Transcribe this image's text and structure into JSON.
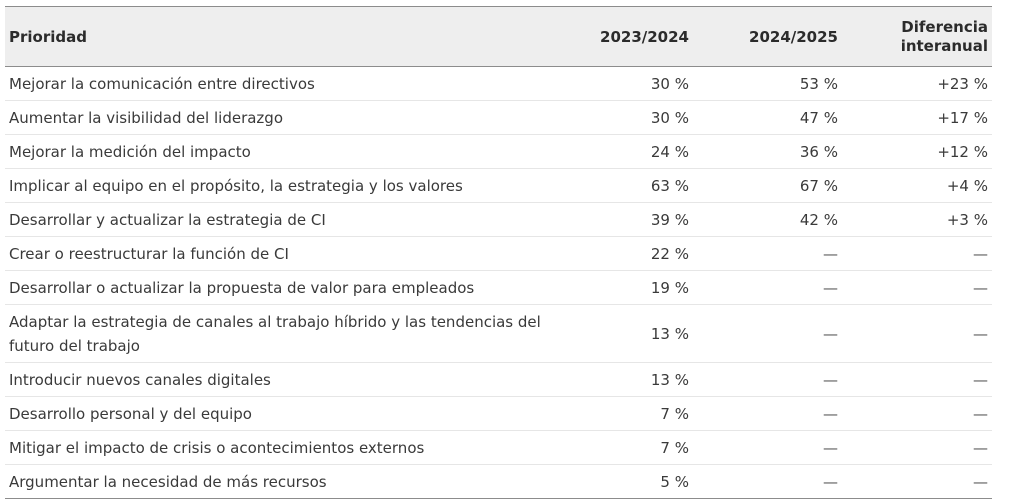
{
  "table": {
    "headers": {
      "priority": "Prioridad",
      "y2023": "2023/2024",
      "y2024": "2024/2025",
      "diff_line1": "Diferencia",
      "diff_line2": "interanual"
    },
    "rows": [
      {
        "priority": "Mejorar la comunicación entre directivos",
        "y2023": "30 %",
        "y2024": "53 %",
        "diff": "+23 %"
      },
      {
        "priority": "Aumentar la visibilidad del liderazgo",
        "y2023": "30 %",
        "y2024": "47 %",
        "diff": "+17 %"
      },
      {
        "priority": "Mejorar la medición del impacto",
        "y2023": "24 %",
        "y2024": "36 %",
        "diff": "+12 %"
      },
      {
        "priority": "Implicar al equipo en el propósito, la estrategia y los valores",
        "y2023": "63 %",
        "y2024": "67 %",
        "diff": "+4 %"
      },
      {
        "priority": "Desarrollar y actualizar la estrategia de CI",
        "y2023": "39 %",
        "y2024": "42 %",
        "diff": "+3 %"
      },
      {
        "priority": "Crear o reestructurar la función de CI",
        "y2023": "22 %",
        "y2024": "—",
        "diff": "—"
      },
      {
        "priority": "Desarrollar o actualizar la propuesta de valor para empleados",
        "y2023": "19 %",
        "y2024": "—",
        "diff": "—"
      },
      {
        "priority": "Adaptar la estrategia de canales al trabajo híbrido y las tendencias del futuro del trabajo",
        "y2023": "13 %",
        "y2024": "—",
        "diff": "—"
      },
      {
        "priority": "Introducir nuevos canales digitales",
        "y2023": "13 %",
        "y2024": "—",
        "diff": "—"
      },
      {
        "priority": "Desarrollo personal y del equipo",
        "y2023": "7 %",
        "y2024": "—",
        "diff": "—"
      },
      {
        "priority": "Mitigar el impacto de crisis o acontecimientos externos",
        "y2023": "7 %",
        "y2024": "—",
        "diff": "—"
      },
      {
        "priority": "Argumentar la necesidad de más recursos",
        "y2023": "5 %",
        "y2024": "—",
        "diff": "—"
      }
    ]
  }
}
